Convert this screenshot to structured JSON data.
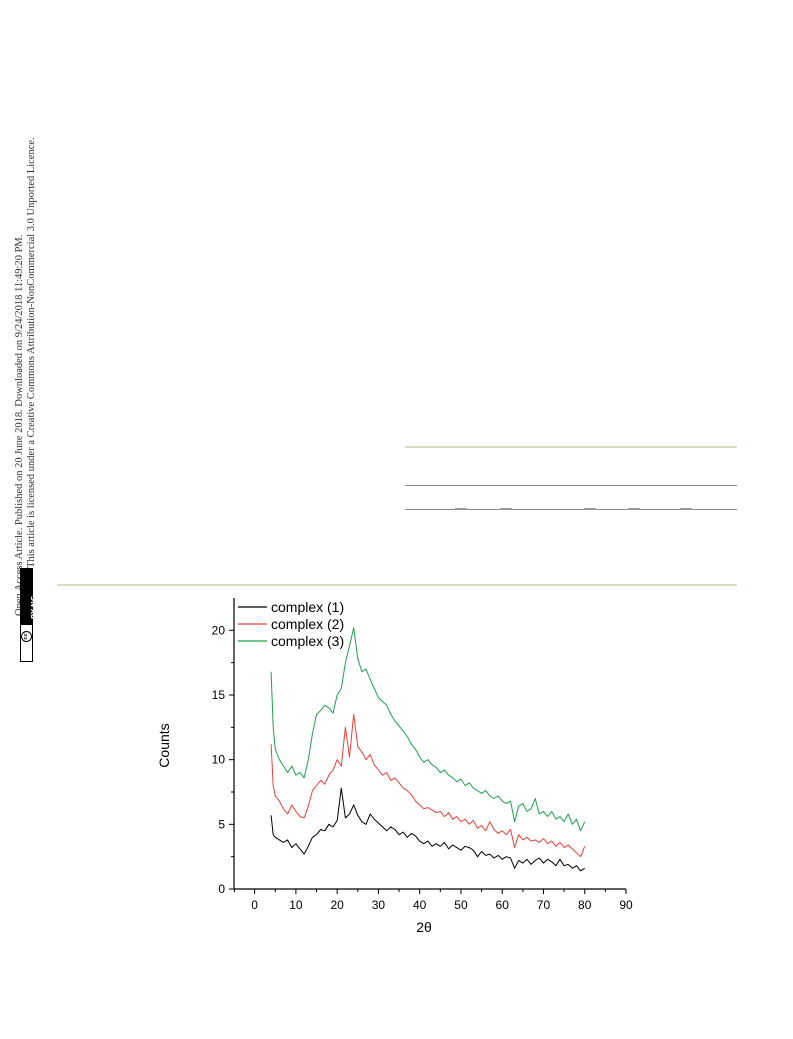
{
  "side_note": {
    "line1": "Open Access Article. Published on 20 June 2018. Downloaded on 9/24/2018 11:49:20 PM.",
    "line2": "This article is licensed under a Creative Commons Attribution-NonCommercial 3.0 Unported Licence.",
    "badge_text": "BY-NC",
    "badge_circle": "cc"
  },
  "chart_data": {
    "type": "line",
    "xlabel": "2θ",
    "ylabel": "Counts",
    "xlim": [
      -5,
      90
    ],
    "ylim": [
      0,
      22.5
    ],
    "xticks": [
      0,
      10,
      20,
      30,
      40,
      50,
      60,
      70,
      80,
      90
    ],
    "yticks": [
      0,
      5,
      10,
      15,
      20
    ],
    "legend_position": "top-left",
    "series": [
      {
        "name": "complex (1)",
        "color": "#000000",
        "points": [
          [
            4,
            5.7
          ],
          [
            4.5,
            4.2
          ],
          [
            5,
            4.0
          ],
          [
            6,
            3.8
          ],
          [
            7,
            3.6
          ],
          [
            8,
            3.8
          ],
          [
            9,
            3.2
          ],
          [
            10,
            3.5
          ],
          [
            11,
            3.1
          ],
          [
            12,
            2.7
          ],
          [
            13,
            3.3
          ],
          [
            14,
            4.0
          ],
          [
            15,
            4.2
          ],
          [
            16,
            4.6
          ],
          [
            17,
            4.5
          ],
          [
            18,
            5.0
          ],
          [
            19,
            4.8
          ],
          [
            20,
            5.3
          ],
          [
            21,
            7.8
          ],
          [
            22,
            5.5
          ],
          [
            23,
            5.8
          ],
          [
            24,
            6.5
          ],
          [
            25,
            5.7
          ],
          [
            26,
            5.2
          ],
          [
            27,
            5.0
          ],
          [
            28,
            5.8
          ],
          [
            29,
            5.4
          ],
          [
            30,
            5.1
          ],
          [
            31,
            4.8
          ],
          [
            32,
            4.5
          ],
          [
            33,
            4.8
          ],
          [
            34,
            4.6
          ],
          [
            35,
            4.2
          ],
          [
            36,
            4.4
          ],
          [
            37,
            4.0
          ],
          [
            38,
            4.3
          ],
          [
            39,
            4.1
          ],
          [
            40,
            3.7
          ],
          [
            41,
            3.5
          ],
          [
            42,
            3.7
          ],
          [
            43,
            3.3
          ],
          [
            44,
            3.5
          ],
          [
            45,
            3.3
          ],
          [
            46,
            3.6
          ],
          [
            47,
            3.1
          ],
          [
            48,
            3.4
          ],
          [
            49,
            3.2
          ],
          [
            50,
            3.0
          ],
          [
            51,
            3.3
          ],
          [
            52,
            3.2
          ],
          [
            53,
            3.0
          ],
          [
            54,
            2.5
          ],
          [
            55,
            2.9
          ],
          [
            56,
            2.6
          ],
          [
            57,
            2.7
          ],
          [
            58,
            2.4
          ],
          [
            59,
            2.6
          ],
          [
            60,
            2.3
          ],
          [
            61,
            2.5
          ],
          [
            62,
            2.4
          ],
          [
            63,
            1.6
          ],
          [
            64,
            2.2
          ],
          [
            65,
            2.0
          ],
          [
            66,
            2.3
          ],
          [
            67,
            1.9
          ],
          [
            68,
            2.2
          ],
          [
            69,
            2.4
          ],
          [
            70,
            2.0
          ],
          [
            71,
            2.3
          ],
          [
            72,
            2.1
          ],
          [
            73,
            1.8
          ],
          [
            74,
            2.3
          ],
          [
            75,
            1.8
          ],
          [
            76,
            1.9
          ],
          [
            77,
            1.6
          ],
          [
            78,
            1.8
          ],
          [
            79,
            1.4
          ],
          [
            80,
            1.6
          ]
        ]
      },
      {
        "name": "complex (2)",
        "color": "#e8403a",
        "points": [
          [
            4,
            11.2
          ],
          [
            4.5,
            8.0
          ],
          [
            5,
            7.2
          ],
          [
            6,
            6.8
          ],
          [
            7,
            6.2
          ],
          [
            8,
            5.8
          ],
          [
            9,
            6.5
          ],
          [
            10,
            6.0
          ],
          [
            11,
            5.6
          ],
          [
            12,
            5.5
          ],
          [
            13,
            6.4
          ],
          [
            14,
            7.6
          ],
          [
            15,
            8.0
          ],
          [
            16,
            8.4
          ],
          [
            17,
            8.1
          ],
          [
            18,
            8.8
          ],
          [
            19,
            9.2
          ],
          [
            20,
            10.0
          ],
          [
            21,
            9.5
          ],
          [
            22,
            12.5
          ],
          [
            23,
            10.2
          ],
          [
            24,
            13.5
          ],
          [
            25,
            11.0
          ],
          [
            26,
            10.6
          ],
          [
            27,
            10.0
          ],
          [
            28,
            10.4
          ],
          [
            29,
            9.6
          ],
          [
            30,
            9.2
          ],
          [
            31,
            8.8
          ],
          [
            32,
            9.0
          ],
          [
            33,
            8.4
          ],
          [
            34,
            8.6
          ],
          [
            35,
            8.2
          ],
          [
            36,
            7.8
          ],
          [
            37,
            7.6
          ],
          [
            38,
            7.3
          ],
          [
            39,
            6.8
          ],
          [
            40,
            6.5
          ],
          [
            41,
            6.2
          ],
          [
            42,
            6.3
          ],
          [
            43,
            6.1
          ],
          [
            44,
            5.9
          ],
          [
            45,
            6.0
          ],
          [
            46,
            5.6
          ],
          [
            47,
            5.9
          ],
          [
            48,
            5.4
          ],
          [
            49,
            5.6
          ],
          [
            50,
            5.2
          ],
          [
            51,
            5.4
          ],
          [
            52,
            5.0
          ],
          [
            53,
            5.3
          ],
          [
            54,
            4.7
          ],
          [
            55,
            4.9
          ],
          [
            56,
            4.5
          ],
          [
            57,
            5.2
          ],
          [
            58,
            4.6
          ],
          [
            59,
            4.3
          ],
          [
            60,
            4.5
          ],
          [
            61,
            4.2
          ],
          [
            62,
            4.6
          ],
          [
            63,
            3.2
          ],
          [
            64,
            4.2
          ],
          [
            65,
            3.8
          ],
          [
            66,
            4.0
          ],
          [
            67,
            3.7
          ],
          [
            68,
            3.8
          ],
          [
            69,
            3.6
          ],
          [
            70,
            3.9
          ],
          [
            71,
            3.5
          ],
          [
            72,
            3.7
          ],
          [
            73,
            3.3
          ],
          [
            74,
            3.6
          ],
          [
            75,
            3.2
          ],
          [
            76,
            3.4
          ],
          [
            77,
            3.1
          ],
          [
            78,
            2.8
          ],
          [
            79,
            2.5
          ],
          [
            80,
            3.3
          ]
        ]
      },
      {
        "name": "complex (3)",
        "color": "#1ea04e",
        "points": [
          [
            4,
            16.8
          ],
          [
            4.5,
            12.5
          ],
          [
            5,
            10.8
          ],
          [
            6,
            10.0
          ],
          [
            7,
            9.5
          ],
          [
            8,
            9.0
          ],
          [
            9,
            9.5
          ],
          [
            10,
            8.8
          ],
          [
            11,
            9.0
          ],
          [
            12,
            8.6
          ],
          [
            13,
            10.0
          ],
          [
            14,
            12.0
          ],
          [
            15,
            13.5
          ],
          [
            16,
            13.8
          ],
          [
            17,
            14.2
          ],
          [
            18,
            14.0
          ],
          [
            19,
            13.6
          ],
          [
            20,
            15.0
          ],
          [
            21,
            15.5
          ],
          [
            22,
            17.5
          ],
          [
            23,
            18.8
          ],
          [
            24,
            20.2
          ],
          [
            25,
            17.8
          ],
          [
            26,
            16.8
          ],
          [
            27,
            17.0
          ],
          [
            28,
            16.2
          ],
          [
            29,
            15.5
          ],
          [
            30,
            14.8
          ],
          [
            31,
            14.5
          ],
          [
            32,
            14.2
          ],
          [
            33,
            13.5
          ],
          [
            34,
            13.0
          ],
          [
            35,
            12.6
          ],
          [
            36,
            12.2
          ],
          [
            37,
            11.8
          ],
          [
            38,
            11.2
          ],
          [
            39,
            10.8
          ],
          [
            40,
            10.2
          ],
          [
            41,
            9.8
          ],
          [
            42,
            10.0
          ],
          [
            43,
            9.6
          ],
          [
            44,
            9.4
          ],
          [
            45,
            9.0
          ],
          [
            46,
            9.2
          ],
          [
            47,
            8.8
          ],
          [
            48,
            8.6
          ],
          [
            49,
            8.3
          ],
          [
            50,
            8.5
          ],
          [
            51,
            8.0
          ],
          [
            52,
            8.2
          ],
          [
            53,
            7.8
          ],
          [
            54,
            7.6
          ],
          [
            55,
            7.4
          ],
          [
            56,
            7.6
          ],
          [
            57,
            7.2
          ],
          [
            58,
            7.0
          ],
          [
            59,
            7.2
          ],
          [
            60,
            6.8
          ],
          [
            61,
            6.6
          ],
          [
            62,
            6.8
          ],
          [
            63,
            5.2
          ],
          [
            64,
            6.4
          ],
          [
            65,
            6.6
          ],
          [
            66,
            6.0
          ],
          [
            67,
            6.2
          ],
          [
            68,
            7.0
          ],
          [
            69,
            5.8
          ],
          [
            70,
            6.0
          ],
          [
            71,
            5.6
          ],
          [
            72,
            6.0
          ],
          [
            73,
            5.4
          ],
          [
            74,
            5.6
          ],
          [
            75,
            5.2
          ],
          [
            76,
            5.8
          ],
          [
            77,
            5.0
          ],
          [
            78,
            5.4
          ],
          [
            79,
            4.5
          ],
          [
            80,
            5.2
          ]
        ]
      }
    ]
  }
}
